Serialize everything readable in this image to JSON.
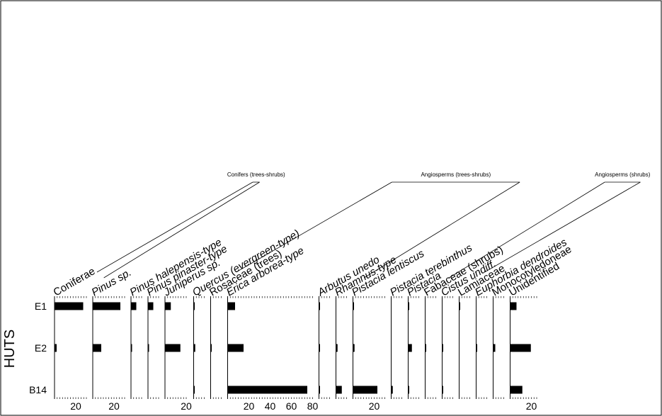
{
  "chart_data": {
    "type": "bar",
    "orientation": "horizontal",
    "axis_label": "HUTS",
    "rows": [
      "E1",
      "E2",
      "B14"
    ],
    "groups": [
      {
        "name": "Conifers (trees-shrubs)",
        "first": 0,
        "last": 4
      },
      {
        "name": "Angiosperms (trees-shrubs)",
        "first": 5,
        "last": 13
      },
      {
        "name": "Angiosperms (shrubs)",
        "first": 14,
        "last": 18
      }
    ],
    "taxa": [
      {
        "label": "Coniferae",
        "italic": false,
        "max": 30,
        "ticks": [
          20
        ],
        "values": [
          27,
          2,
          0
        ]
      },
      {
        "label": "Pinus sp.",
        "italic": true,
        "max": 30,
        "ticks": [
          20
        ],
        "values": [
          26,
          8,
          0
        ]
      },
      {
        "label": "Pinus halepensis-type",
        "italic": true,
        "max": 10,
        "ticks": [],
        "values": [
          5,
          1,
          0
        ]
      },
      {
        "label": "Pinus pinaster-type",
        "italic": true,
        "max": 10,
        "ticks": [],
        "values": [
          5,
          0.5,
          0
        ]
      },
      {
        "label": "Juniperus sp.",
        "italic": true,
        "max": 21,
        "ticks": [
          20
        ],
        "values": [
          5.5,
          14.5,
          0
        ]
      },
      {
        "label": "Quercus (evergreen-type)",
        "italic": true,
        "max": 10,
        "ticks": [],
        "values": [
          0.5,
          1.5,
          0.5
        ]
      },
      {
        "label": "Rosaceae (trees)",
        "italic": false,
        "max": 10,
        "ticks": [],
        "values": [
          0,
          0.5,
          0
        ]
      },
      {
        "label": "Erica arborea-type",
        "italic": true,
        "max": 80,
        "ticks": [
          20,
          40,
          60,
          80
        ],
        "values": [
          7,
          15,
          75
        ]
      },
      {
        "label": "Arbutus unedo",
        "italic": true,
        "max": 10,
        "ticks": [],
        "values": [
          0.5,
          1,
          0.5
        ]
      },
      {
        "label": "Rhamnus-type",
        "italic": true,
        "max": 10,
        "ticks": [],
        "values": [
          0,
          1.5,
          5.5
        ]
      },
      {
        "label": "Pistacia lentiscus",
        "italic": true,
        "max": 30,
        "ticks": [
          20
        ],
        "values": [
          0.5,
          1.5,
          23
        ]
      },
      {
        "label": "Pistacia terebinthus",
        "italic": true,
        "max": 10,
        "ticks": [],
        "values": [
          0,
          0,
          1.5
        ]
      },
      {
        "label": "Pistacia",
        "italic": true,
        "max": 10,
        "ticks": [],
        "values": [
          0.5,
          3.5,
          0.5
        ]
      },
      {
        "label": "Fabaceae (shrubs)",
        "italic": false,
        "max": 10,
        "ticks": [],
        "values": [
          0,
          0.5,
          0
        ]
      },
      {
        "label": "Cistus undiff.",
        "italic": true,
        "max": 10,
        "ticks": [],
        "values": [
          0,
          0.5,
          0.5
        ]
      },
      {
        "label": "Lamiaceae",
        "italic": false,
        "max": 10,
        "ticks": [],
        "values": [
          0.5,
          0,
          0
        ]
      },
      {
        "label": "Euphorbia dendroides",
        "italic": true,
        "max": 10,
        "ticks": [],
        "values": [
          0,
          0.5,
          0
        ]
      },
      {
        "label": "Monocotyledoneae",
        "italic": false,
        "max": 10,
        "ticks": [],
        "values": [
          0,
          2,
          0
        ]
      },
      {
        "label": "Unidentified",
        "italic": false,
        "max": 25,
        "ticks": [
          20
        ],
        "values": [
          6,
          19.5,
          11.5
        ]
      }
    ]
  }
}
